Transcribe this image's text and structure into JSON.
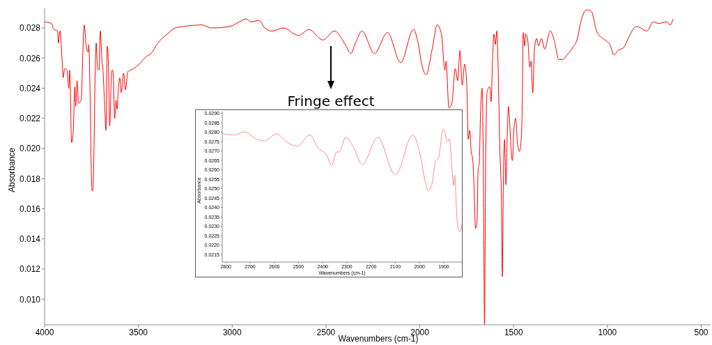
{
  "chart_data": [
    {
      "type": "line",
      "xlabel": "Wavenumbers (cm-1)",
      "ylabel": "Absorbance",
      "xlim": [
        4000,
        450
      ],
      "ylim": [
        0.0083,
        0.0293
      ],
      "xticks": [
        4000,
        3500,
        3000,
        2500,
        2000,
        1500,
        1000,
        500
      ],
      "yticks": [
        {
          "value": 0.01,
          "label": "0.010"
        },
        {
          "value": 0.012,
          "label": "0.012"
        },
        {
          "value": 0.014,
          "label": "0.014"
        },
        {
          "value": 0.016,
          "label": "0.016"
        },
        {
          "value": 0.018,
          "label": "0.018"
        },
        {
          "value": 0.02,
          "label": "0.020"
        },
        {
          "value": 0.022,
          "label": "0.022"
        },
        {
          "value": 0.024,
          "label": "0.024"
        },
        {
          "value": 0.026,
          "label": "0.026"
        },
        {
          "value": 0.028,
          "label": "0.028"
        }
      ],
      "annotations": [
        "Fringe effect"
      ],
      "series": [
        {
          "color": "#ff0000",
          "x": [
            4000,
            3963,
            3951,
            3931,
            3926,
            3918,
            3906,
            3901,
            3893,
            3881,
            3871,
            3866,
            3856,
            3847,
            3839,
            3834,
            3827,
            3819,
            3804,
            3797,
            3789,
            3777,
            3767,
            3765,
            3757,
            3752,
            3747,
            3743,
            3737,
            3730,
            3725,
            3718,
            3710,
            3703,
            3695,
            3688,
            3680,
            3673,
            3666,
            3661,
            3653,
            3643,
            3636,
            3626,
            3619,
            3614,
            3606,
            3599,
            3591,
            3579,
            3569,
            3556,
            3544,
            3526,
            3495,
            3458,
            3433,
            3396,
            3346,
            3302,
            3259,
            3160,
            3111,
            3012,
            2962,
            2925,
            2900,
            2857,
            2826,
            2789,
            2727,
            2647,
            2591,
            2517,
            2455,
            2393,
            2368,
            2343,
            2308,
            2242,
            2172,
            2102,
            2034,
            2009,
            1990,
            1966,
            1934,
            1907,
            1885,
            1866,
            1860,
            1845,
            1829,
            1811,
            1798,
            1786,
            1774,
            1761,
            1749,
            1742,
            1734,
            1726,
            1718,
            1711,
            1703,
            1695,
            1689,
            1683,
            1677,
            1668,
            1662,
            1655,
            1650,
            1642,
            1635,
            1627,
            1620,
            1612,
            1605,
            1597,
            1590,
            1582,
            1577,
            1573,
            1565,
            1560,
            1555,
            1548,
            1541,
            1533,
            1528,
            1521,
            1514,
            1506,
            1499,
            1489,
            1479,
            1469,
            1459,
            1454,
            1449,
            1441,
            1436,
            1424,
            1414,
            1407,
            1398,
            1389,
            1377,
            1367,
            1352,
            1334,
            1305,
            1284,
            1259,
            1238,
            1216,
            1185,
            1160,
            1142,
            1111,
            1086,
            1055,
            1024,
            987,
            965,
            944,
            913,
            882,
            845,
            789,
            756,
            727,
            684,
            665,
            650
          ],
          "values": [
            0.0284,
            0.0283,
            0.0279,
            0.0278,
            0.027,
            0.0278,
            0.0257,
            0.0247,
            0.0253,
            0.0252,
            0.024,
            0.0252,
            0.0204,
            0.0212,
            0.0241,
            0.0228,
            0.0245,
            0.023,
            0.0233,
            0.026,
            0.0282,
            0.0267,
            0.0264,
            0.0269,
            0.0233,
            0.0191,
            0.0172,
            0.0172,
            0.0197,
            0.0253,
            0.027,
            0.0253,
            0.0252,
            0.0278,
            0.026,
            0.025,
            0.0229,
            0.0212,
            0.0268,
            0.0261,
            0.0215,
            0.0251,
            0.0252,
            0.022,
            0.0232,
            0.0226,
            0.0241,
            0.0247,
            0.0237,
            0.025,
            0.0239,
            0.0251,
            0.0252,
            0.0253,
            0.0256,
            0.0261,
            0.0263,
            0.027,
            0.0276,
            0.028,
            0.0281,
            0.0282,
            0.028,
            0.0281,
            0.0284,
            0.0286,
            0.0284,
            0.0285,
            0.028,
            0.0278,
            0.028,
            0.0275,
            0.0279,
            0.0272,
            0.0278,
            0.0268,
            0.0263,
            0.027,
            0.0278,
            0.0263,
            0.0277,
            0.0257,
            0.0279,
            0.027,
            0.0256,
            0.0249,
            0.0266,
            0.0282,
            0.0276,
            0.0252,
            0.0258,
            0.0227,
            0.023,
            0.0253,
            0.0245,
            0.0265,
            0.0242,
            0.0256,
            0.024,
            0.0206,
            0.0212,
            0.0198,
            0.0193,
            0.0175,
            0.0147,
            0.0152,
            0.0186,
            0.019,
            0.0221,
            0.024,
            0.0198,
            0.0083,
            0.0175,
            0.0237,
            0.024,
            0.0241,
            0.0231,
            0.026,
            0.0276,
            0.0269,
            0.0278,
            0.0252,
            0.0221,
            0.0198,
            0.0167,
            0.0115,
            0.0175,
            0.0206,
            0.0176,
            0.0213,
            0.0228,
            0.0217,
            0.02,
            0.0192,
            0.0212,
            0.022,
            0.0203,
            0.0198,
            0.0207,
            0.0229,
            0.0277,
            0.0268,
            0.0276,
            0.0271,
            0.0254,
            0.0258,
            0.0237,
            0.0266,
            0.0273,
            0.0268,
            0.0273,
            0.0266,
            0.0278,
            0.0272,
            0.0259,
            0.0259,
            0.0262,
            0.0267,
            0.0273,
            0.0284,
            0.0292,
            0.0291,
            0.0277,
            0.0273,
            0.0269,
            0.0262,
            0.0265,
            0.0267,
            0.0275,
            0.0281,
            0.0278,
            0.0284,
            0.0283,
            0.0284,
            0.0282,
            0.0286
          ]
        }
      ]
    },
    {
      "type": "line",
      "xlabel": "Wavenumbers (cm-1)",
      "ylabel": "Absorbance",
      "xlim": [
        2815,
        1825
      ],
      "ylim": [
        0.0211,
        0.0291
      ],
      "xticks": [
        2800,
        2700,
        2600,
        2500,
        2400,
        2300,
        2200,
        2100,
        2000,
        1900
      ],
      "yticks": [
        0.0215,
        {
          "value": 0.022,
          "label": "0.0220"
        },
        0.0225,
        {
          "value": 0.023,
          "label": "0.0230"
        },
        0.0235,
        {
          "value": 0.024,
          "label": "0.0240"
        },
        0.0245,
        {
          "value": 0.025,
          "label": "0.0250"
        },
        0.0255,
        {
          "value": 0.026,
          "label": "0.0260"
        },
        0.0265,
        {
          "value": 0.027,
          "label": "0.0270"
        },
        0.0275,
        {
          "value": 0.028,
          "label": "0.0280"
        },
        0.0285,
        {
          "value": 0.029,
          "label": "0.0290"
        }
      ],
      "series": [
        {
          "color": "#ff8c8c",
          "x": [
            2814,
            2768,
            2723,
            2673,
            2641,
            2591,
            2545,
            2505,
            2453,
            2418,
            2386,
            2362,
            2343,
            2332,
            2305,
            2273,
            2236,
            2173,
            2100,
            2027,
            2000,
            1977,
            1964,
            1950,
            1932,
            1923,
            1902,
            1884,
            1877,
            1865,
            1859,
            1855,
            1845,
            1836,
            1832,
            1825
          ],
          "values": [
            0.02793,
            0.02785,
            0.02802,
            0.02763,
            0.02754,
            0.02791,
            0.02744,
            0.02726,
            0.02785,
            0.02714,
            0.02683,
            0.02625,
            0.02695,
            0.02695,
            0.02773,
            0.0272,
            0.02628,
            0.02773,
            0.02573,
            0.02787,
            0.02695,
            0.02542,
            0.02487,
            0.02518,
            0.02652,
            0.02658,
            0.02818,
            0.0275,
            0.02765,
            0.02591,
            0.02518,
            0.02573,
            0.02334,
            0.02273,
            0.02273,
            0.02309
          ]
        }
      ]
    }
  ]
}
